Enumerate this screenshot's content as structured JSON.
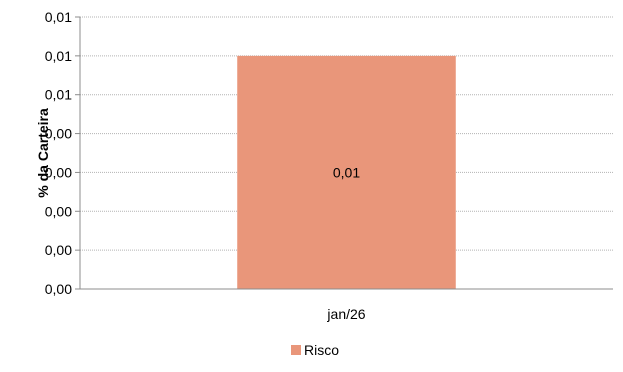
{
  "chart_data": {
    "type": "bar",
    "title": "",
    "xlabel": "",
    "ylabel": "% da Carteira",
    "categories": [
      "jan/26"
    ],
    "series": [
      {
        "name": "Risco",
        "values": [
          0.009
        ],
        "value_labels": [
          "0,01"
        ],
        "color": "#E9967A"
      }
    ],
    "y_ticks": [
      "0,00",
      "0,00",
      "0,00",
      "0,00",
      "0,00",
      "0,01",
      "0,01",
      "0,01"
    ],
    "ylim": [
      0,
      0.0105
    ],
    "grid": true,
    "legend_position": "bottom"
  }
}
